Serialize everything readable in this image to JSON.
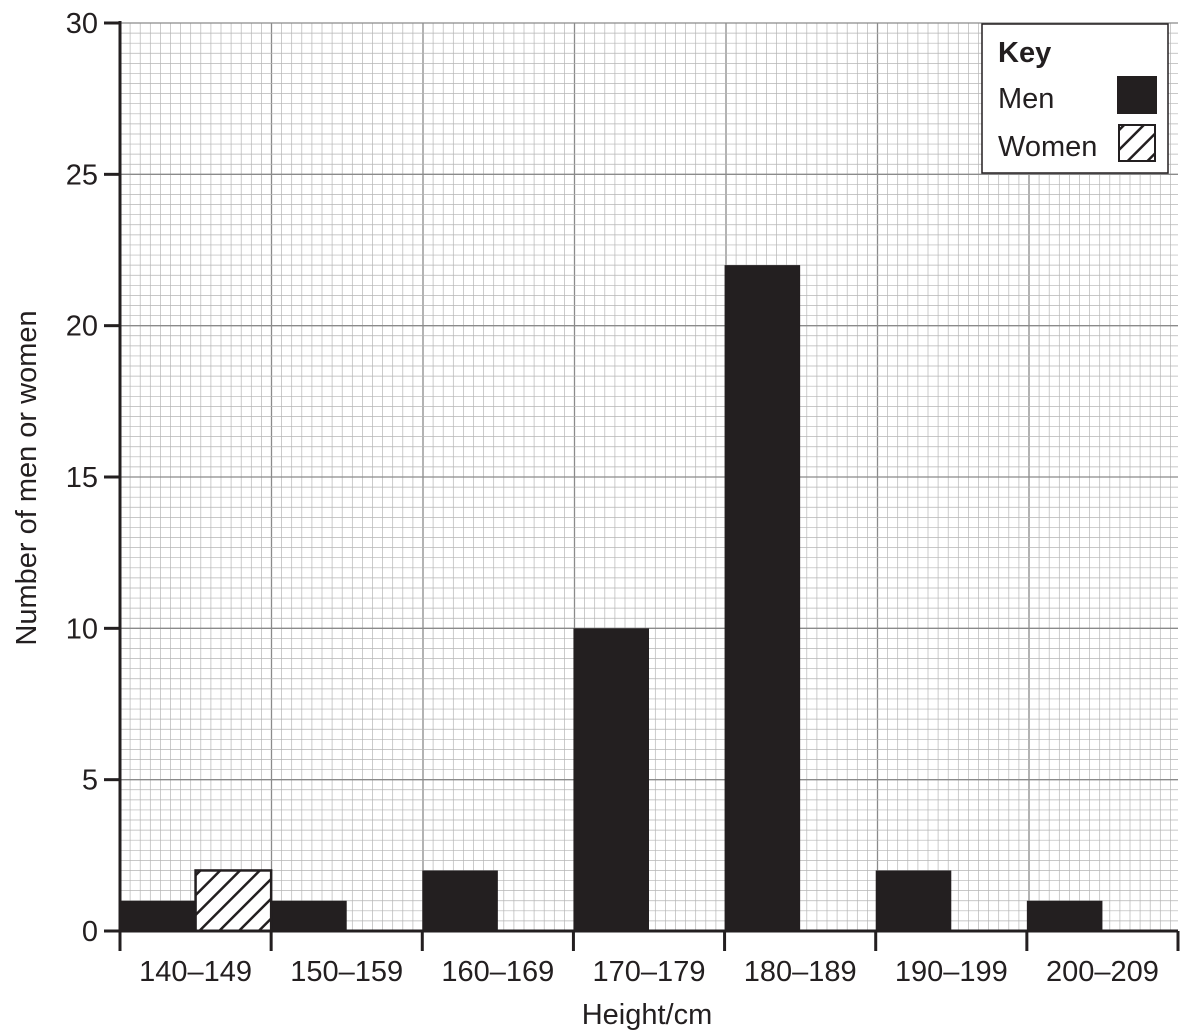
{
  "chart_data": {
    "type": "bar",
    "categories": [
      "140–149",
      "150–159",
      "160–169",
      "170–179",
      "180–189",
      "190–199",
      "200–209"
    ],
    "series": [
      {
        "name": "Men",
        "values": [
          1,
          1,
          2,
          10,
          22,
          2,
          1
        ],
        "color": "#231f20",
        "pattern": "solid"
      },
      {
        "name": "Women",
        "values": [
          2,
          0,
          0,
          0,
          0,
          0,
          0
        ],
        "color": "#231f20",
        "pattern": "hatched"
      }
    ],
    "xlabel": "Height / cm",
    "ylabel": "Number of men or women",
    "ylim": [
      0,
      30
    ],
    "yticks": [
      0,
      5,
      10,
      15,
      20,
      25,
      30
    ],
    "grid": true,
    "legend": {
      "title": "Key",
      "position": "top-right"
    }
  }
}
